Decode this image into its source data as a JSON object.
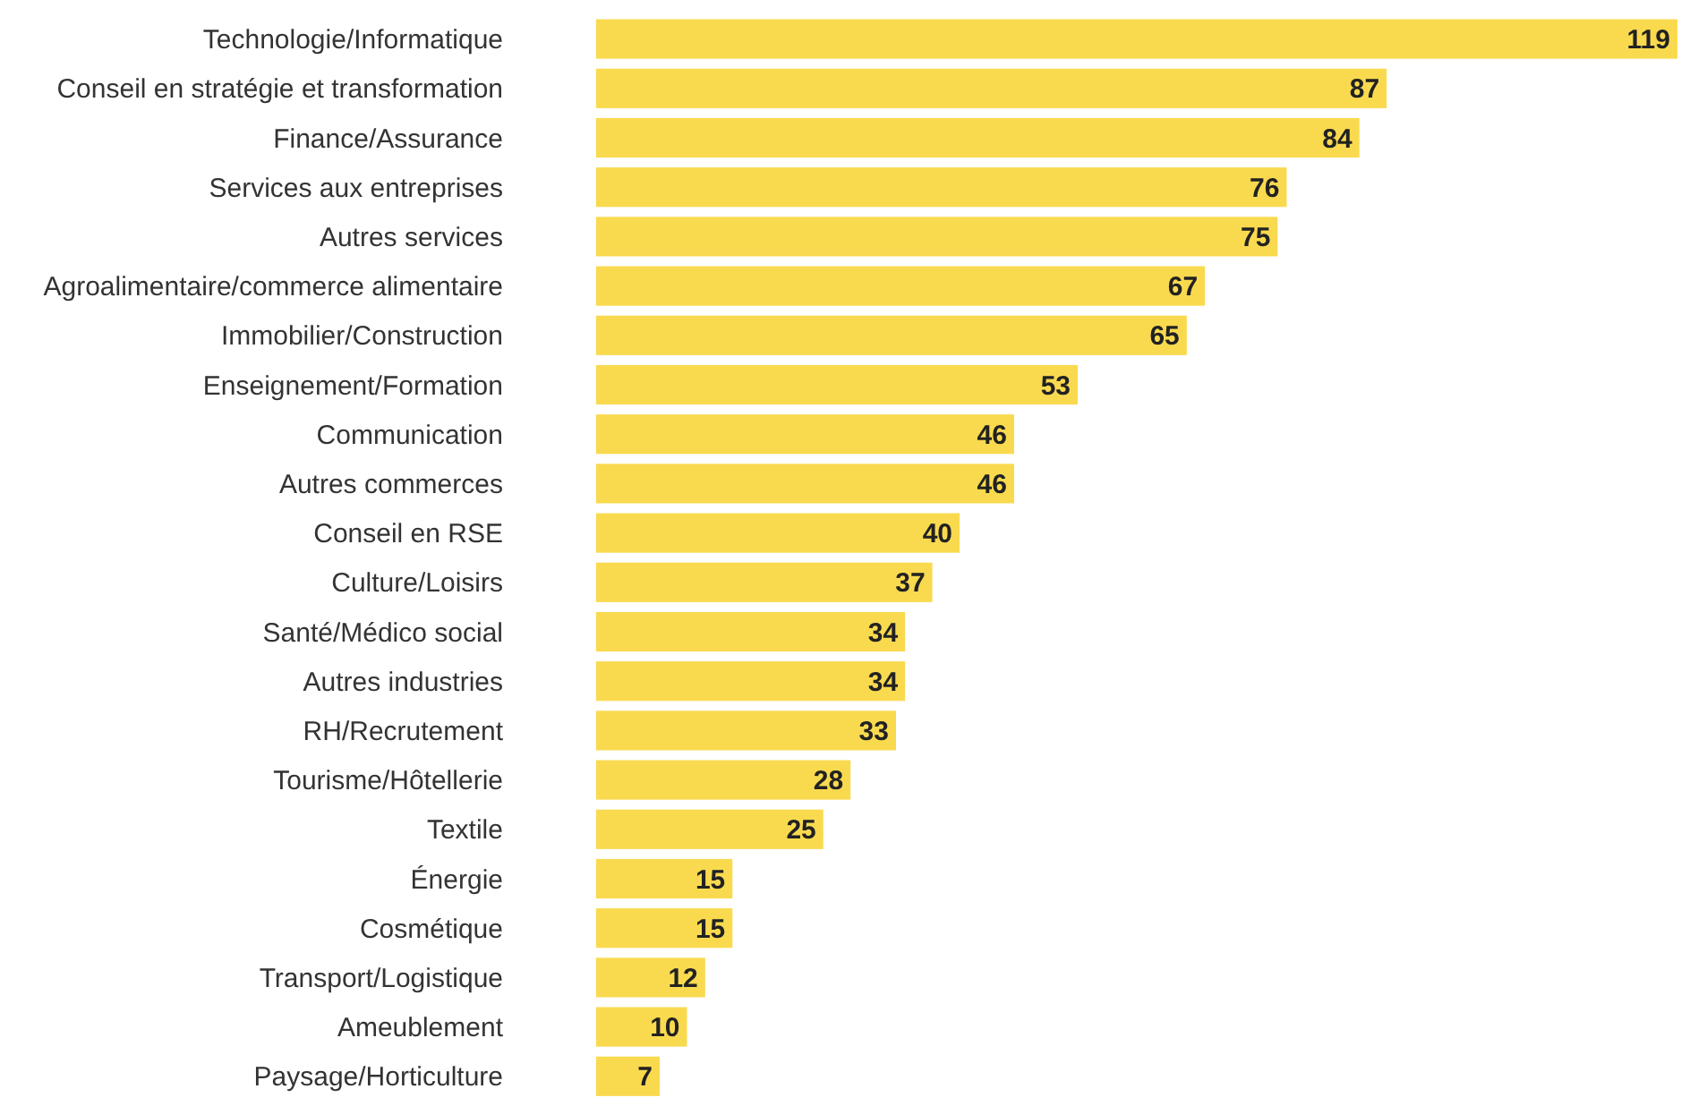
{
  "chart_data": {
    "type": "bar",
    "orientation": "horizontal",
    "data_labels": true,
    "color": "#f9da4f",
    "categories": [
      "Technologie/Informatique",
      "Conseil en stratégie et transformation",
      "Finance/Assurance",
      "Services aux entreprises",
      "Autres services",
      "Agroalimentaire/commerce alimentaire",
      "Immobilier/Construction",
      "Enseignement/Formation",
      "Communication",
      "Autres commerces",
      "Conseil en RSE",
      "Culture/Loisirs",
      "Santé/Médico social",
      "Autres industries",
      "RH/Recrutement",
      "Tourisme/Hôtellerie",
      "Textile",
      "Énergie",
      "Cosmétique",
      "Transport/Logistique",
      "Ameublement",
      "Paysage/Horticulture"
    ],
    "values": [
      119,
      87,
      84,
      76,
      75,
      67,
      65,
      53,
      46,
      46,
      40,
      37,
      34,
      34,
      33,
      28,
      25,
      15,
      15,
      12,
      10,
      7
    ]
  }
}
